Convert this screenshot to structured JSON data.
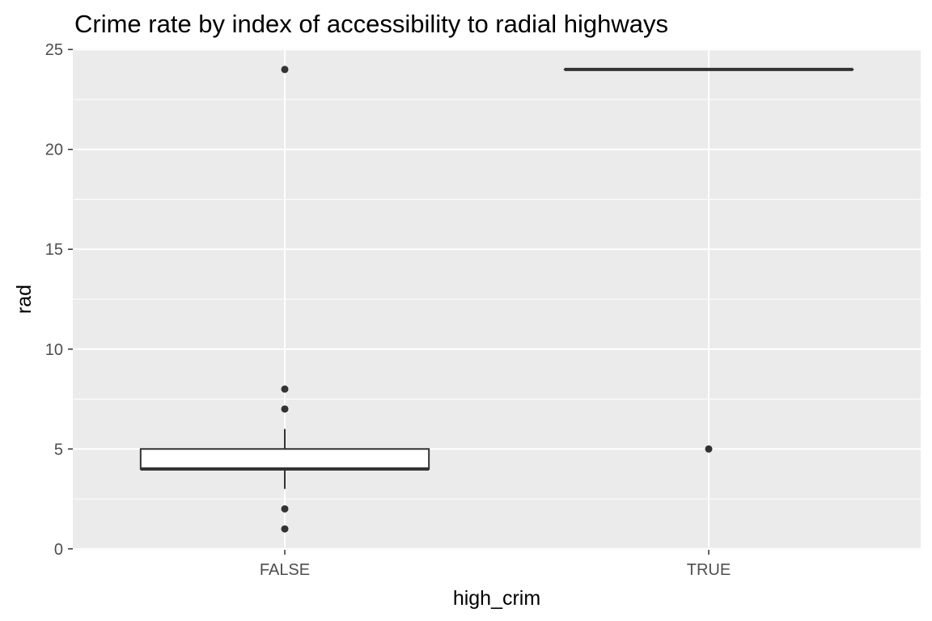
{
  "chart_data": {
    "type": "boxplot",
    "title": "Crime rate by index of accessibility to radial highways",
    "xlabel": "high_crim",
    "ylabel": "rad",
    "categories": [
      "FALSE",
      "TRUE"
    ],
    "ylim": [
      -0.05,
      25.05
    ],
    "yticks": [
      0,
      5,
      10,
      15,
      20,
      25
    ],
    "grid": true,
    "boxes": [
      {
        "category": "FALSE",
        "q1": 4,
        "median": 4,
        "q3": 5,
        "whisker_low": 3,
        "whisker_high": 6,
        "outliers": [
          24,
          8,
          7,
          2,
          1
        ]
      },
      {
        "category": "TRUE",
        "q1": 24,
        "median": 24,
        "q3": 24,
        "whisker_low": 24,
        "whisker_high": 24,
        "outliers": [
          5
        ]
      }
    ]
  }
}
